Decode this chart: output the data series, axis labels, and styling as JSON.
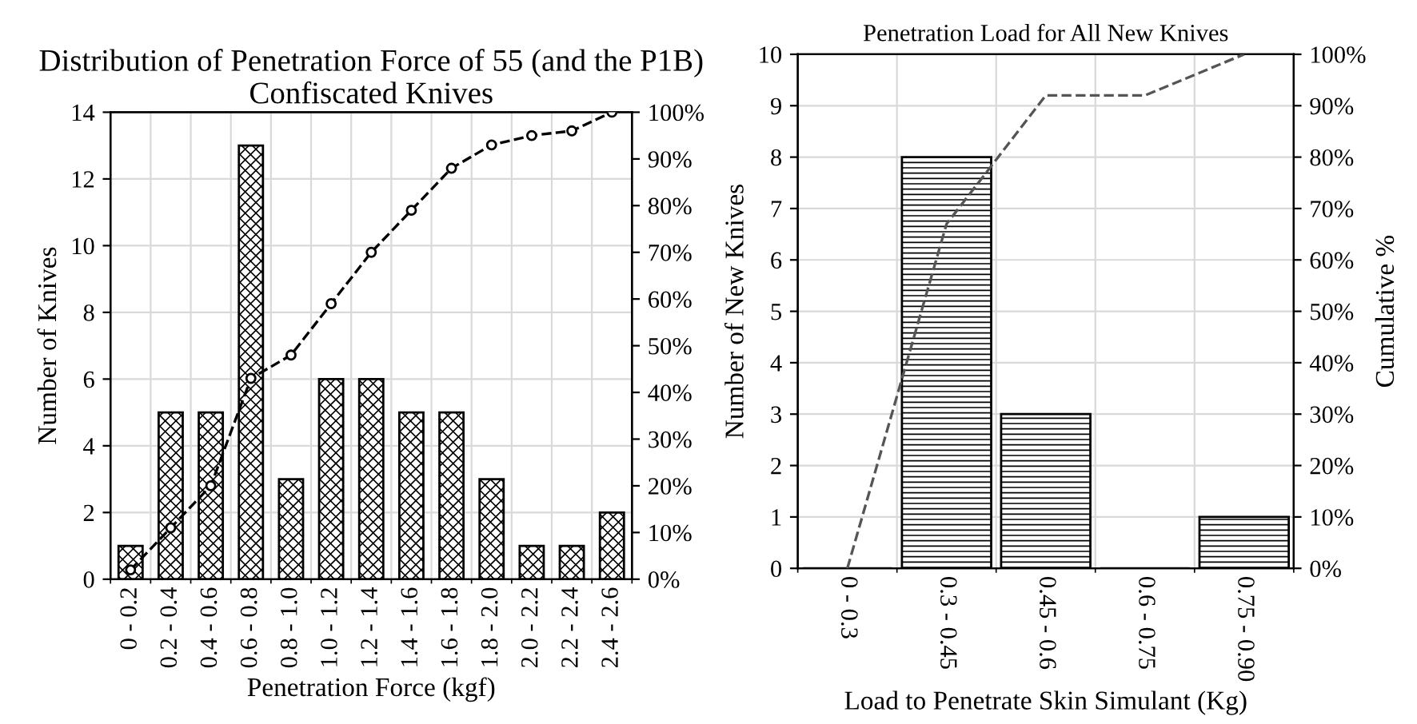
{
  "chart_data": [
    {
      "type": "bar",
      "title": "Distribution of Penetration Force of 55 (and the P1B) Confiscated Knives",
      "xlabel": "Penetration Force (kgf)",
      "ylabel": "Number of Knives",
      "categories": [
        "0 - 0.2",
        "0.2 - 0.4",
        "0.4 - 0.6",
        "0.6 - 0.8",
        "0.8 - 1.0",
        "1.0 - 1.2",
        "1.2 - 1.4",
        "1.4 - 1.6",
        "1.6 - 1.8",
        "1.8 - 2.0",
        "2.0 - 2.2",
        "2.2 - 2.4",
        "2.4 - 2.6"
      ],
      "series": [
        {
          "color": "#000000",
          "values": [
            1,
            5,
            5,
            13,
            3,
            6,
            6,
            5,
            5,
            3,
            1,
            1,
            2
          ]
        },
        {
          "type": "line",
          "axis": "y2",
          "color": "#000000",
          "marker": "circle",
          "line_style": "dashed",
          "values": [
            2,
            11,
            20,
            43,
            48,
            59,
            70,
            79,
            88,
            93,
            95,
            96,
            100
          ]
        }
      ],
      "ylim": [
        0,
        14
      ],
      "yticks": [
        0,
        2,
        4,
        6,
        8,
        10,
        12,
        14
      ],
      "y2lim": [
        0,
        100
      ],
      "y2ticks": [
        {
          "value": 0,
          "label": "0%"
        },
        {
          "value": 10,
          "label": "10%"
        },
        {
          "value": 20,
          "label": "20%"
        },
        {
          "value": 30,
          "label": "30%"
        },
        {
          "value": 40,
          "label": "40%"
        },
        {
          "value": 50,
          "label": "50%"
        },
        {
          "value": 60,
          "label": "60%"
        },
        {
          "value": 70,
          "label": "70%"
        },
        {
          "value": 80,
          "label": "80%"
        },
        {
          "value": 90,
          "label": "90%"
        },
        {
          "value": 100,
          "label": "100%"
        }
      ],
      "grid": true
    },
    {
      "type": "bar",
      "title": "Penetration Load for All New Knives",
      "xlabel": "Load to Penetrate Skin Simulant (Kg)",
      "ylabel": "Number of New Knives",
      "y2label": "Cumulative %",
      "categories": [
        "0 - 0.3",
        "0.3 - 0.45",
        "0.45 - 0.6",
        "0.6 - 0.75",
        "0.75 - 0.90"
      ],
      "series": [
        {
          "color": "#000000",
          "values": [
            0,
            8,
            3,
            0,
            1
          ]
        },
        {
          "type": "line",
          "axis": "y2",
          "color": "#555555",
          "line_style": "dashed",
          "values": [
            0,
            67,
            92,
            92,
            100
          ]
        }
      ],
      "ylim": [
        0,
        10
      ],
      "yticks": [
        0,
        1,
        2,
        3,
        4,
        5,
        6,
        7,
        8,
        9,
        10
      ],
      "y2lim": [
        0,
        100
      ],
      "y2ticks": [
        {
          "value": 0,
          "label": "0%"
        },
        {
          "value": 10,
          "label": "10%"
        },
        {
          "value": 20,
          "label": "20%"
        },
        {
          "value": 30,
          "label": "30%"
        },
        {
          "value": 40,
          "label": "40%"
        },
        {
          "value": 50,
          "label": "50%"
        },
        {
          "value": 60,
          "label": "60%"
        },
        {
          "value": 70,
          "label": "70%"
        },
        {
          "value": 80,
          "label": "80%"
        },
        {
          "value": 90,
          "label": "90%"
        },
        {
          "value": 100,
          "label": "100%"
        }
      ],
      "grid": true
    }
  ]
}
